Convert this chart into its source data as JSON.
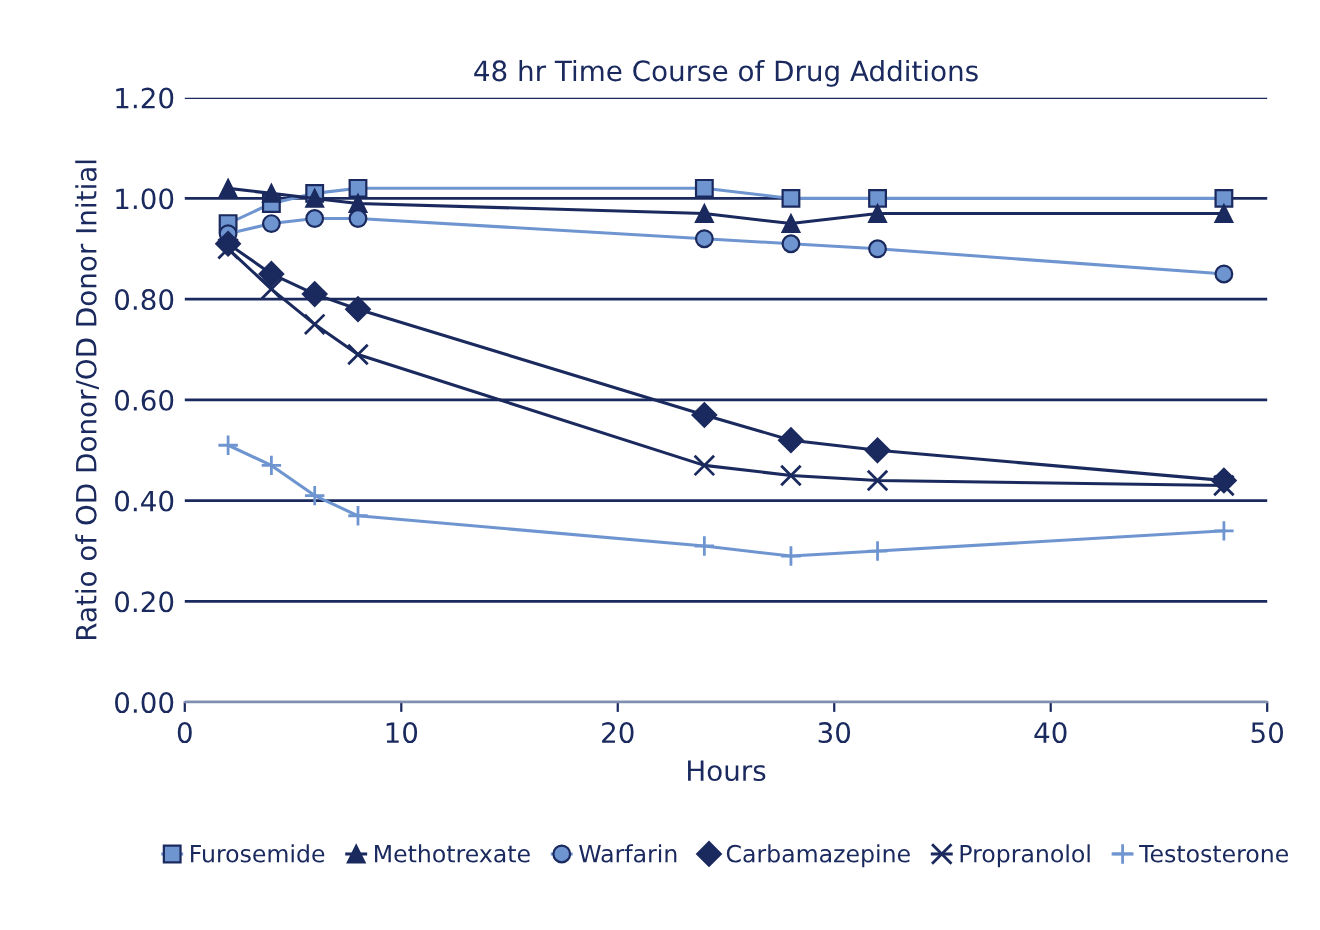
{
  "chart_data": {
    "type": "line",
    "title": "48 hr Time Course of Drug Additions",
    "xlabel": "Hours",
    "ylabel": "Ratio of OD Donor/OD Donor Initial",
    "x": [
      2,
      4,
      6,
      8,
      24,
      28,
      32,
      48
    ],
    "xlim": [
      0,
      50
    ],
    "xticks": [
      0,
      10,
      20,
      30,
      40,
      50
    ],
    "ylim": [
      0,
      1.2
    ],
    "yticks": [
      {
        "value": 0,
        "label": "0.00"
      },
      {
        "value": 0.2,
        "label": "0.20"
      },
      {
        "value": 0.4,
        "label": "0.40"
      },
      {
        "value": 0.6,
        "label": "0.60"
      },
      {
        "value": 0.8,
        "label": "0.80"
      },
      {
        "value": 1.0,
        "label": "1.00"
      },
      {
        "value": 1.2,
        "label": "1.20"
      }
    ],
    "grid": "y",
    "legend": "bottom",
    "series": [
      {
        "name": "Furosemide",
        "color": "#6f95d0",
        "marker": "square",
        "values": [
          0.95,
          0.99,
          1.01,
          1.02,
          1.02,
          1.0,
          1.0,
          1.0
        ]
      },
      {
        "name": "Methotrexate",
        "color": "#1b2a5e",
        "marker": "triangle",
        "values": [
          1.02,
          1.01,
          1.0,
          0.99,
          0.97,
          0.95,
          0.97,
          0.97
        ]
      },
      {
        "name": "Warfarin",
        "color": "#6f95d0",
        "marker": "circle",
        "values": [
          0.93,
          0.95,
          0.96,
          0.96,
          0.92,
          0.91,
          0.9,
          0.85
        ]
      },
      {
        "name": "Carbamazepine",
        "color": "#1b2a5e",
        "marker": "diamond",
        "values": [
          0.91,
          0.85,
          0.81,
          0.78,
          0.57,
          0.52,
          0.5,
          0.44
        ]
      },
      {
        "name": "Propranolol",
        "color": "#1b2a5e",
        "marker": "cross",
        "values": [
          0.9,
          0.82,
          0.75,
          0.69,
          0.47,
          0.45,
          0.44,
          0.43
        ]
      },
      {
        "name": "Testosterone",
        "color": "#6f95d0",
        "marker": "plus",
        "values": [
          0.51,
          0.47,
          0.41,
          0.37,
          0.31,
          0.29,
          0.3,
          0.34
        ]
      }
    ]
  }
}
